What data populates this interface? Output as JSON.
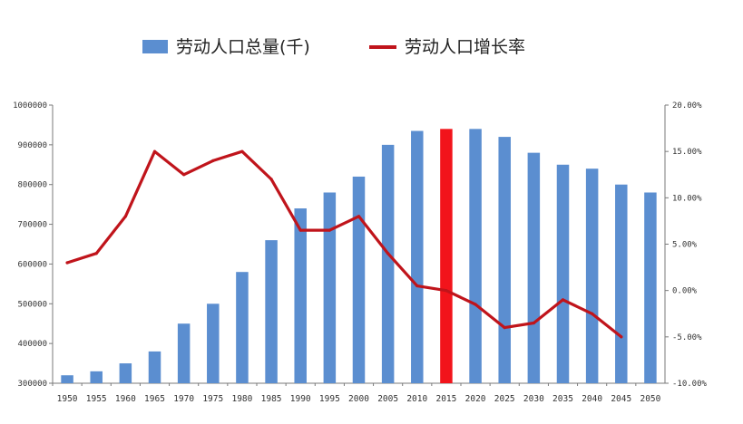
{
  "chart_data": {
    "type": "bar",
    "categories": [
      "1950",
      "1955",
      "1960",
      "1965",
      "1970",
      "1975",
      "1980",
      "1985",
      "1990",
      "1995",
      "2000",
      "2005",
      "2010",
      "2015",
      "2020",
      "2025",
      "2030",
      "2035",
      "2040",
      "2045",
      "2050"
    ],
    "series": [
      {
        "name": "劳动人口总量(千)",
        "type": "bar",
        "axis": "left",
        "color": "#5b8ed0",
        "values": [
          320000,
          330000,
          350000,
          380000,
          450000,
          500000,
          580000,
          660000,
          740000,
          780000,
          820000,
          900000,
          935000,
          940000,
          940000,
          920000,
          880000,
          850000,
          840000,
          800000,
          780000
        ]
      },
      {
        "name": "劳动人口增长率",
        "type": "line",
        "axis": "right",
        "color": "#c0141b",
        "values": [
          3.0,
          4.0,
          8.0,
          15.0,
          12.5,
          14.0,
          15.0,
          12.0,
          6.5,
          6.5,
          8.0,
          4.0,
          0.5,
          0.0,
          -1.5,
          -4.0,
          -3.5,
          -1.0,
          -2.5,
          -5.0,
          null
        ]
      }
    ],
    "highlight": {
      "category": "2015",
      "color": "#f2141b"
    },
    "y_left": {
      "lim": [
        300000,
        1000000
      ],
      "ticks": [
        300000,
        400000,
        500000,
        600000,
        700000,
        800000,
        900000,
        1000000
      ],
      "labels": [
        "300000",
        "400000",
        "500000",
        "600000",
        "700000",
        "800000",
        "900000",
        "1000000"
      ]
    },
    "y_right": {
      "lim": [
        -10,
        20
      ],
      "ticks": [
        -10,
        -5,
        0,
        5,
        10,
        15,
        20
      ],
      "labels": [
        "-10.00%",
        "-5.00%",
        "0.00%",
        "5.00%",
        "10.00%",
        "15.00%",
        "20.00%"
      ]
    },
    "legend_position": "top-center",
    "grid": false
  }
}
